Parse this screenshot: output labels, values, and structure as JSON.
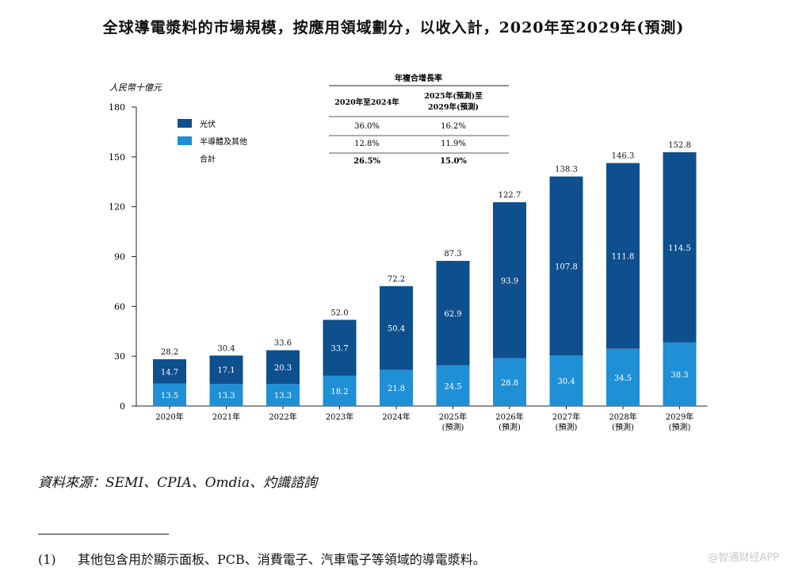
{
  "title": "全球導電漿料的市場規模，按應用領域劃分，以收入計，2020年至2029年(預測)",
  "chart_data": {
    "type": "stacked-bar",
    "unit": "人民幣十億元",
    "categories": [
      "2020年",
      "2021年",
      "2022年",
      "2023年",
      "2024年",
      "2025年",
      "2026年",
      "2027年",
      "2028年",
      "2029年"
    ],
    "category_notes": [
      "",
      "",
      "",
      "",
      "",
      "(預測)",
      "(預測)",
      "(預測)",
      "(預測)",
      "(預測)"
    ],
    "series": [
      {
        "name": "半導體及其他",
        "color": "#1f8fd6",
        "values": [
          13.5,
          13.3,
          13.3,
          18.2,
          21.8,
          24.5,
          28.8,
          30.4,
          34.5,
          38.3
        ]
      },
      {
        "name": "光伏",
        "color": "#0e4f8d",
        "values": [
          14.7,
          17.1,
          20.3,
          33.7,
          50.4,
          62.9,
          93.9,
          107.8,
          111.8,
          114.5
        ]
      }
    ],
    "totals": [
      28.2,
      30.4,
      33.6,
      52.0,
      72.2,
      87.3,
      122.7,
      138.3,
      146.3,
      152.8
    ],
    "totals_text": [
      "28.2",
      "30.4",
      "33.6",
      "52.0",
      "72.2",
      "87.3",
      "122.7",
      "138.3",
      "146.3",
      "152.8"
    ],
    "value_text": {
      "bottom": [
        "13.5",
        "13.3",
        "13.3",
        "18.2",
        "21.8",
        "24.5",
        "28.8",
        "30.4",
        "34.5",
        "38.3"
      ],
      "top": [
        "14.7",
        "17.1",
        "20.3",
        "33.7",
        "50.4",
        "62.9",
        "93.9",
        "107.8",
        "111.8",
        "114.5"
      ]
    },
    "ylim": [
      0,
      180
    ],
    "yticks": [
      0,
      30,
      60,
      90,
      120,
      150,
      180
    ],
    "legend": [
      "光伏",
      "半導體及其他",
      "合計"
    ],
    "cagr_table": {
      "title": "年複合增長率",
      "headers": [
        "2020年至2024年",
        "2025年(預測)至",
        "2029年(預測)"
      ],
      "rows": [
        [
          "36.0%",
          "16.2%"
        ],
        [
          "12.8%",
          "11.9%"
        ],
        [
          "26.5%",
          "15.0%"
        ]
      ]
    }
  },
  "source": "資料來源：SEMI、CPIA、Omdia、灼識諮詢",
  "footnote": {
    "num": "(1)",
    "text": "其他包含用於顯示面板、PCB、消費電子、汽車電子等領域的導電漿料。"
  },
  "watermark": "@智通财经APP"
}
